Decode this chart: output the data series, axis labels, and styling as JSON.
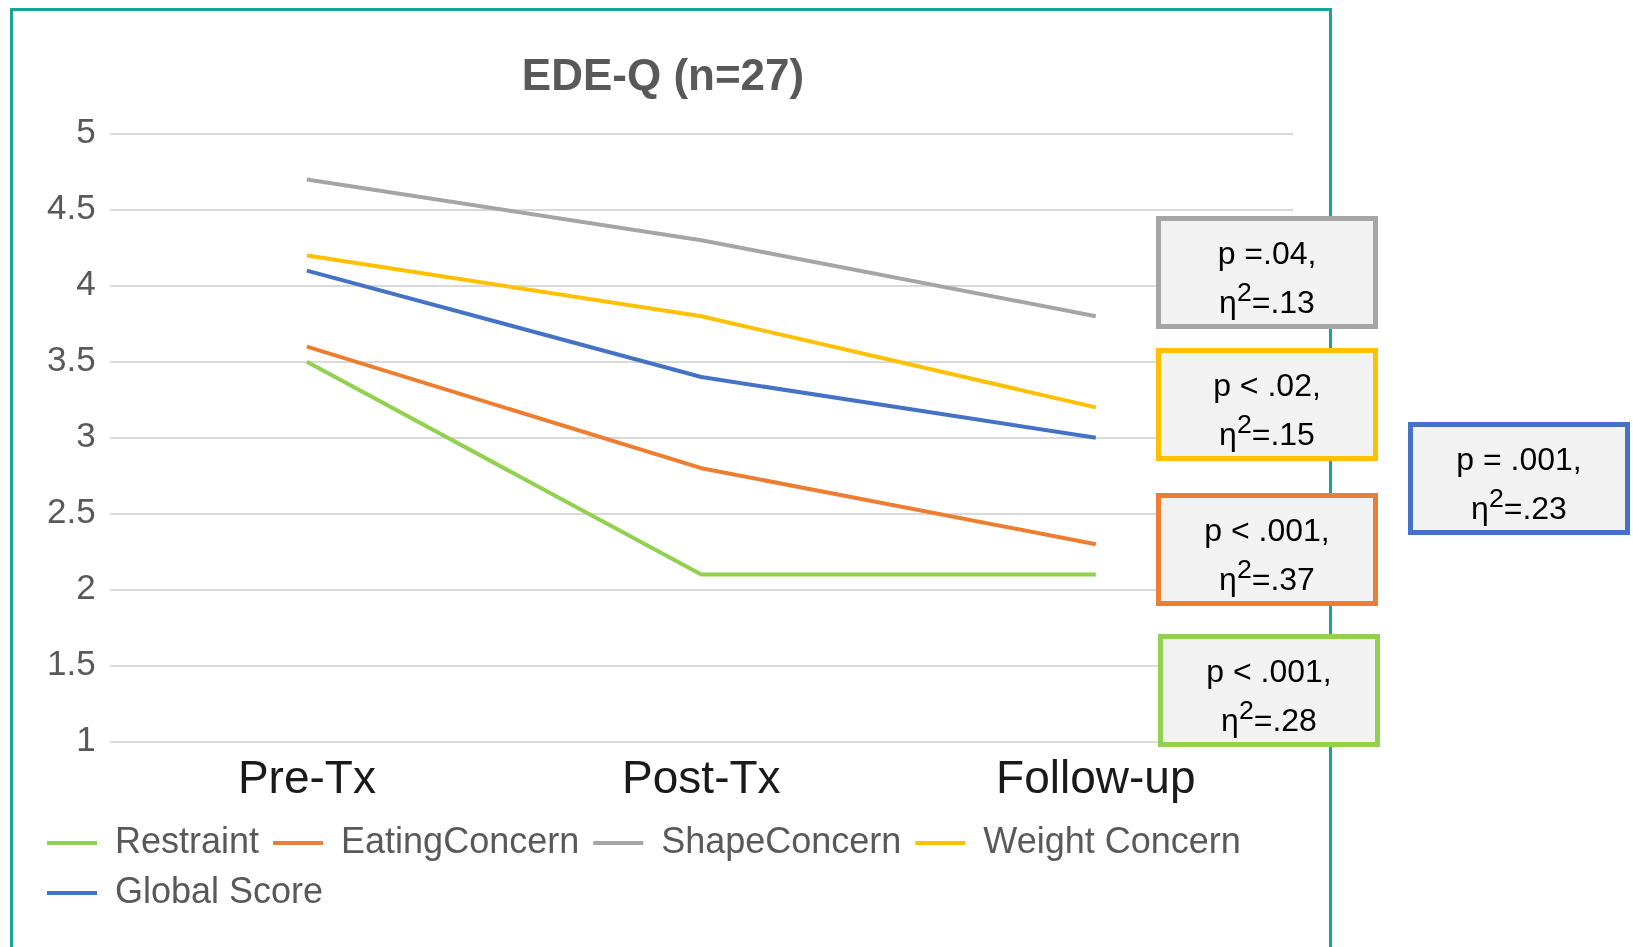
{
  "chart_data": {
    "type": "line",
    "title": "EDE-Q (n=27)",
    "categories": [
      "Pre-Tx",
      "Post-Tx",
      "Follow-up"
    ],
    "series": [
      {
        "name": "Restraint",
        "color": "#92d050",
        "values": [
          3.5,
          2.1,
          2.1
        ]
      },
      {
        "name": "EatingConcern",
        "color": "#ed7d31",
        "values": [
          3.6,
          2.8,
          2.3
        ]
      },
      {
        "name": "ShapeConcern",
        "color": "#a5a5a5",
        "values": [
          4.7,
          4.3,
          3.8
        ]
      },
      {
        "name": "Weight Concern",
        "color": "#ffc000",
        "values": [
          4.2,
          3.8,
          3.2
        ]
      },
      {
        "name": "Global Score",
        "color": "#4472c4",
        "values": [
          4.1,
          3.4,
          3.0
        ]
      }
    ],
    "ylim": [
      1,
      5
    ],
    "yticks": [
      1,
      1.5,
      2,
      2.5,
      3,
      3.5,
      4,
      4.5,
      5
    ],
    "grid": "y",
    "legend": "bottom",
    "marker": "none",
    "line_style": "solid",
    "annotations": [
      "p =.04, η$^{2}$=.13",
      "p < .02, η$^{2}$=.15",
      "p < .001, η$^{2}$=.37",
      "p < .001, η$^{2}$=.28",
      "p = .001, η$^{2}$=.23"
    ]
  }
}
